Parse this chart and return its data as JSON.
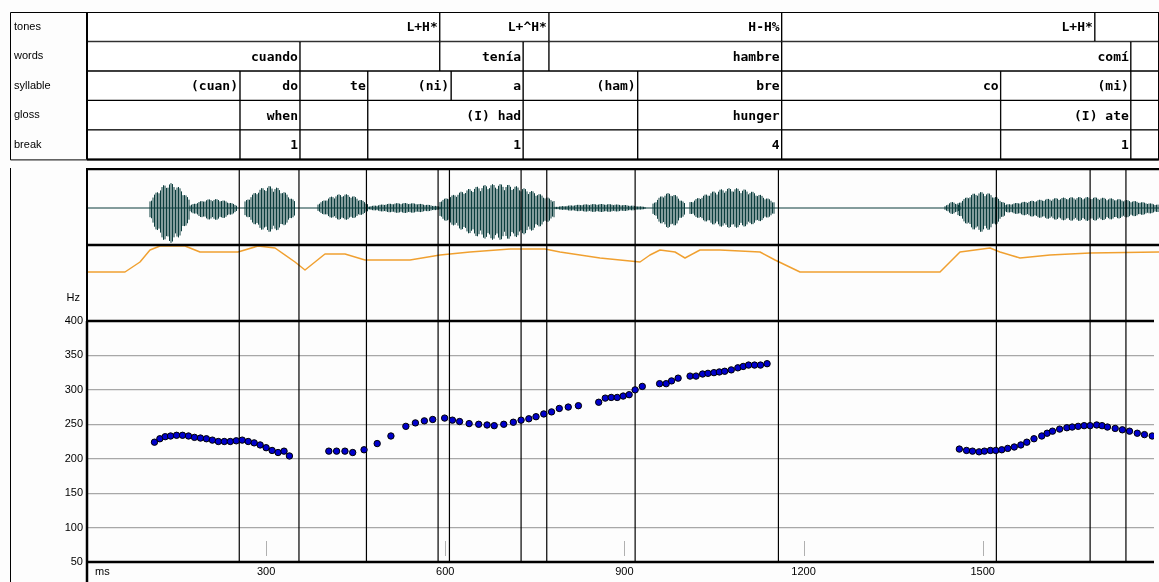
{
  "chart_data": [
    {
      "type": "bar",
      "orientation": "horizontal",
      "stacked": true,
      "categories": [
        "tones",
        "words",
        "syllable",
        "gloss",
        "break"
      ],
      "xlim": [
        0,
        1787
      ],
      "tick_labels": "y",
      "series": [
        {
          "color": "#ffffff",
          "values": [
            588,
            355,
            255,
            255,
            255
          ]
        },
        {
          "color": "#ffffff",
          "values": [
            182,
            233,
            100,
            100,
            100
          ]
        },
        {
          "color": "#ffffff",
          "values": [
            388,
            139,
            113,
            113,
            113
          ]
        },
        {
          "color": "#ffffff",
          "values": [
            522,
            43,
            139,
            259,
            259
          ]
        },
        {
          "color": "#ffffff",
          "values": [
            107,
            388,
            120,
            191,
            191
          ]
        },
        {
          "color": "#ffffff",
          "values": [
            null,
            582,
            191,
            240,
            240
          ]
        },
        {
          "color": "#ffffff",
          "values": [
            null,
            47,
            240,
            365,
            365
          ]
        },
        {
          "color": "#ffffff",
          "values": [
            null,
            null,
            365,
            217,
            217
          ]
        },
        {
          "color": "#ffffff",
          "values": [
            null,
            null,
            217,
            47,
            47
          ]
        },
        {
          "color": "#ffffff",
          "values": [
            null,
            null,
            47,
            null,
            null
          ]
        }
      ],
      "annotations": [
        {
          "text": "L+H*",
          "x": 588,
          "y": "tones"
        },
        {
          "text": "L+^H*",
          "x": 770,
          "y": "tones"
        },
        {
          "text": "H-H%",
          "x": 1158,
          "y": "tones"
        },
        {
          "text": "L+H*",
          "x": 1680,
          "y": "tones"
        },
        {
          "text": "cuando",
          "x": 355,
          "y": "words"
        },
        {
          "text": "tenía",
          "x": 727,
          "y": "words"
        },
        {
          "text": "hambre",
          "x": 1158,
          "y": "words"
        },
        {
          "text": "comí",
          "x": 1740,
          "y": "words"
        },
        {
          "text": "(cuan)",
          "x": 255,
          "y": "syllable"
        },
        {
          "text": "do",
          "x": 355,
          "y": "syllable"
        },
        {
          "text": "te",
          "x": 468,
          "y": "syllable"
        },
        {
          "text": "(ni)",
          "x": 607,
          "y": "syllable"
        },
        {
          "text": "a",
          "x": 727,
          "y": "syllable"
        },
        {
          "text": "(ham)",
          "x": 918,
          "y": "syllable"
        },
        {
          "text": "bre",
          "x": 1158,
          "y": "syllable"
        },
        {
          "text": "co",
          "x": 1523,
          "y": "syllable"
        },
        {
          "text": "(mi)",
          "x": 1740,
          "y": "syllable"
        },
        {
          "text": "when",
          "x": 355,
          "y": "gloss"
        },
        {
          "text": "(I) had",
          "x": 727,
          "y": "gloss"
        },
        {
          "text": "hunger",
          "x": 1158,
          "y": "gloss"
        },
        {
          "text": "(I) ate",
          "x": 1740,
          "y": "gloss"
        },
        {
          "text": "1",
          "x": 355,
          "y": "break"
        },
        {
          "text": "1",
          "x": 727,
          "y": "break"
        },
        {
          "text": "4",
          "x": 1158,
          "y": "break"
        },
        {
          "text": "1",
          "x": 1740,
          "y": "break"
        }
      ]
    },
    {
      "type": "scatter",
      "xlabel": "ms",
      "ylabel": "Hz",
      "xlim": [
        0,
        1787
      ],
      "ylim": [
        50,
        400
      ],
      "xticks": [
        300,
        600,
        900,
        1200,
        1500
      ],
      "yticks": [
        50,
        100,
        150,
        200,
        250,
        300,
        350,
        400
      ],
      "grid": "y",
      "marker": "circle",
      "color": "#0000cc",
      "x": [
        113,
        122,
        131,
        140,
        150,
        160,
        170,
        180,
        190,
        200,
        210,
        220,
        230,
        240,
        250,
        260,
        270,
        280,
        290,
        300,
        310,
        320,
        330,
        339,
        405,
        418,
        432,
        445,
        464,
        486,
        509,
        534,
        550,
        565,
        579,
        599,
        612,
        624,
        640,
        656,
        670,
        682,
        698,
        714,
        727,
        740,
        752,
        765,
        778,
        791,
        806,
        823,
        857,
        868,
        878,
        888,
        898,
        908,
        918,
        930,
        959,
        970,
        979,
        990,
        1010,
        1020,
        1031,
        1040,
        1050,
        1059,
        1068,
        1079,
        1090,
        1099,
        1108,
        1118,
        1128,
        1139,
        1461,
        1473,
        1483,
        1494,
        1503,
        1513,
        1522,
        1532,
        1542,
        1553,
        1564,
        1574,
        1586,
        1599,
        1608,
        1617,
        1629,
        1641,
        1650,
        1660,
        1670,
        1680,
        1691,
        1700,
        1709,
        1722,
        1734,
        1746,
        1759,
        1771,
        1784
      ],
      "values": [
        224,
        229,
        232,
        233,
        234,
        234,
        233,
        231,
        230,
        229,
        227,
        225,
        225,
        225,
        226,
        227,
        225,
        223,
        220,
        216,
        212,
        209,
        211,
        204,
        211,
        211,
        211,
        209,
        213,
        222,
        233,
        247,
        252,
        255,
        257,
        259,
        256,
        254,
        251,
        250,
        249,
        248,
        250,
        253,
        256,
        258,
        261,
        265,
        268,
        273,
        275,
        277,
        282,
        288,
        289,
        289,
        291,
        293,
        300,
        305,
        309,
        309,
        313,
        317,
        320,
        320,
        323,
        324,
        325,
        326,
        327,
        329,
        332,
        334,
        336,
        336,
        336,
        338,
        214,
        212,
        211,
        210,
        211,
        212,
        212,
        213,
        215,
        217,
        220,
        224,
        229,
        233,
        237,
        240,
        243,
        245,
        246,
        247,
        248,
        248,
        249,
        248,
        246,
        244,
        242,
        240,
        237,
        235,
        233
      ],
      "ref_lines": [
        {
          "axis": "x",
          "value": 255,
          "color": "#000000"
        },
        {
          "axis": "x",
          "value": 355,
          "color": "#000000"
        },
        {
          "axis": "x",
          "value": 468,
          "color": "#000000"
        },
        {
          "axis": "x",
          "value": 588,
          "color": "#000000"
        },
        {
          "axis": "x",
          "value": 607,
          "color": "#000000"
        },
        {
          "axis": "x",
          "value": 727,
          "color": "#000000"
        },
        {
          "axis": "x",
          "value": 770,
          "color": "#000000"
        },
        {
          "axis": "x",
          "value": 918,
          "color": "#000000"
        },
        {
          "axis": "x",
          "value": 1158,
          "color": "#000000"
        },
        {
          "axis": "x",
          "value": 1523,
          "color": "#000000"
        },
        {
          "axis": "x",
          "value": 1680,
          "color": "#000000"
        },
        {
          "axis": "x",
          "value": 1740,
          "color": "#000000"
        }
      ]
    }
  ]
}
